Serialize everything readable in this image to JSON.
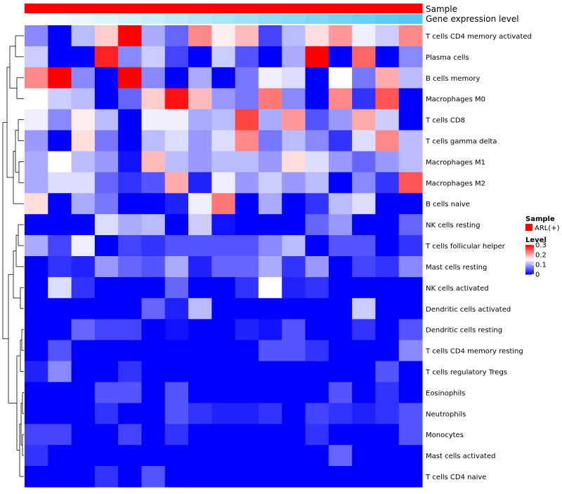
{
  "chart_data": {
    "type": "heatmap",
    "annotation_titles": [
      "Sample",
      "Gene expression level"
    ],
    "rows": [
      "T cells CD4 memory activated",
      "Plasma cells",
      "B cells memory",
      "Macrophages M0",
      "T cells CD8",
      "T cells gamma delta",
      "Macrophages M1",
      "Macrophages M2",
      "B cells naive",
      "NK cells resting",
      "T cells follicular helper",
      "Mast cells resting",
      "NK cells activated",
      "Dendritic cells activated",
      "Dendritic cells resting",
      "T cells CD4 memory resting",
      "T cells regulatory  Tregs",
      "Eosinophils",
      "Neutrophils",
      "Monocytes",
      "Mast cells activated",
      "T cells CD4 naive"
    ],
    "n_columns": 17,
    "values": [
      [
        0.08,
        0.0,
        0.11,
        0.18,
        0.3,
        0.1,
        0.06,
        0.22,
        0.16,
        0.19,
        0.04,
        0.11,
        0.17,
        0.21,
        0.14,
        0.12,
        0.22
      ],
      [
        0.12,
        0.0,
        0.0,
        0.28,
        0.08,
        0.12,
        0.04,
        0.0,
        0.12,
        0.05,
        0.0,
        0.1,
        0.3,
        0.0,
        0.24,
        0.0,
        0.08
      ],
      [
        0.22,
        0.3,
        0.08,
        0.0,
        0.3,
        0.08,
        0.0,
        0.1,
        0.0,
        0.07,
        0.14,
        0.13,
        0.0,
        0.15,
        0.07,
        0.2,
        0.11
      ],
      [
        0.15,
        0.12,
        0.11,
        0.0,
        0.06,
        0.18,
        0.29,
        0.19,
        0.09,
        0.07,
        0.23,
        0.08,
        0.0,
        0.22,
        0.03,
        0.25,
        0.0
      ],
      [
        0.14,
        0.08,
        0.16,
        0.11,
        0.0,
        0.14,
        0.14,
        0.1,
        0.11,
        0.26,
        0.1,
        0.21,
        0.05,
        0.09,
        0.2,
        0.12,
        0.0
      ],
      [
        0.09,
        0.0,
        0.17,
        0.07,
        0.0,
        0.11,
        0.13,
        0.09,
        0.13,
        0.22,
        0.07,
        0.11,
        0.08,
        0.03,
        0.13,
        0.22,
        0.11
      ],
      [
        0.1,
        0.15,
        0.11,
        0.09,
        0.01,
        0.19,
        0.11,
        0.09,
        0.11,
        0.11,
        0.09,
        0.17,
        0.13,
        0.09,
        0.06,
        0.09,
        0.11
      ],
      [
        0.1,
        0.13,
        0.13,
        0.06,
        0.03,
        0.05,
        0.2,
        0.02,
        0.14,
        0.09,
        0.12,
        0.09,
        0.11,
        0.0,
        0.08,
        0.03,
        0.25
      ],
      [
        0.17,
        0.0,
        0.1,
        0.07,
        0.0,
        0.0,
        0.02,
        0.14,
        0.23,
        0.0,
        0.1,
        0.0,
        0.03,
        0.11,
        0.13,
        0.0,
        0.0
      ],
      [
        0.0,
        0.0,
        0.0,
        0.13,
        0.1,
        0.11,
        0.0,
        0.12,
        0.01,
        0.0,
        0.0,
        0.0,
        0.06,
        0.09,
        0.0,
        0.0,
        0.06
      ],
      [
        0.1,
        0.04,
        0.14,
        0.0,
        0.04,
        0.03,
        0.05,
        0.05,
        0.05,
        0.05,
        0.08,
        0.11,
        0.0,
        0.05,
        0.05,
        0.0,
        0.03
      ],
      [
        0.0,
        0.03,
        0.02,
        0.09,
        0.06,
        0.05,
        0.1,
        0.02,
        0.06,
        0.06,
        0.1,
        0.03,
        0.09,
        0.0,
        0.04,
        0.03,
        0.08
      ],
      [
        0.0,
        0.13,
        0.03,
        0.0,
        0.0,
        0.0,
        0.06,
        0.0,
        0.0,
        0.03,
        0.15,
        0.02,
        0.03,
        0.0,
        0.0,
        0.0,
        0.0
      ],
      [
        0.0,
        0.0,
        0.0,
        0.0,
        0.0,
        0.06,
        0.02,
        0.11,
        0.0,
        0.0,
        0.0,
        0.0,
        0.0,
        0.0,
        0.12,
        0.0,
        0.0
      ],
      [
        0.0,
        0.0,
        0.06,
        0.04,
        0.04,
        0.0,
        0.01,
        0.0,
        0.0,
        0.02,
        0.01,
        0.05,
        0.0,
        0.0,
        0.03,
        0.0,
        0.05
      ],
      [
        0.0,
        0.05,
        0.0,
        0.0,
        0.0,
        0.0,
        0.0,
        0.0,
        0.0,
        0.0,
        0.05,
        0.05,
        0.03,
        0.0,
        0.0,
        0.0,
        0.08
      ],
      [
        0.02,
        0.08,
        0.0,
        0.0,
        0.03,
        0.0,
        0.0,
        0.0,
        0.0,
        0.0,
        0.0,
        0.0,
        0.0,
        0.0,
        0.0,
        0.05,
        0.0
      ],
      [
        0.0,
        0.0,
        0.0,
        0.05,
        0.05,
        0.0,
        0.05,
        0.0,
        0.0,
        0.0,
        0.0,
        0.0,
        0.0,
        0.05,
        0.0,
        0.03,
        0.0
      ],
      [
        0.0,
        0.0,
        0.0,
        0.03,
        0.0,
        0.0,
        0.05,
        0.03,
        0.02,
        0.02,
        0.03,
        0.0,
        0.04,
        0.03,
        0.02,
        0.03,
        0.05
      ],
      [
        0.04,
        0.04,
        0.0,
        0.0,
        0.04,
        0.0,
        0.03,
        0.0,
        0.0,
        0.0,
        0.0,
        0.0,
        0.03,
        0.0,
        0.0,
        0.0,
        0.05
      ],
      [
        0.03,
        0.0,
        0.0,
        0.0,
        0.0,
        0.0,
        0.0,
        0.0,
        0.0,
        0.0,
        0.0,
        0.0,
        0.0,
        0.06,
        0.0,
        0.0,
        0.0
      ],
      [
        0.0,
        0.0,
        0.0,
        0.03,
        0.0,
        0.05,
        0.0,
        0.0,
        0.0,
        0.0,
        0.0,
        0.0,
        0.0,
        0.0,
        0.0,
        0.0,
        0.0
      ]
    ],
    "sample_annotation": [
      "ARL(+)",
      "ARL(+)",
      "ARL(+)",
      "ARL(+)",
      "ARL(+)",
      "ARL(+)",
      "ARL(+)",
      "ARL(+)",
      "ARL(+)",
      "ARL(+)",
      "ARL(+)",
      "ARL(+)",
      "ARL(+)",
      "ARL(+)",
      "ARL(+)",
      "ARL(+)",
      "ARL(+)"
    ],
    "expression_annotation": [
      0.0,
      0.06,
      0.13,
      0.19,
      0.25,
      0.31,
      0.38,
      0.44,
      0.5,
      0.56,
      0.63,
      0.69,
      0.75,
      0.81,
      0.88,
      0.94,
      1.0
    ],
    "color_scale": {
      "low": "#0000ff",
      "mid": "#ffffff",
      "high": "#ff0000",
      "min": 0,
      "max": 0.3
    },
    "expression_colors": {
      "low": "#ffffff",
      "high": "#56c8f0"
    },
    "legend": {
      "sample_title": "Sample",
      "sample_entries": [
        {
          "label": "ARL(+)",
          "color": "#ff0000"
        }
      ],
      "level_title": "Level",
      "level_ticks": [
        {
          "value": 0.3,
          "label": "0.3"
        },
        {
          "value": 0.2,
          "label": "0.2"
        },
        {
          "value": 0.1,
          "label": "0.1"
        },
        {
          "value": 0,
          "label": "0"
        }
      ]
    },
    "row_dendrogram": true
  }
}
